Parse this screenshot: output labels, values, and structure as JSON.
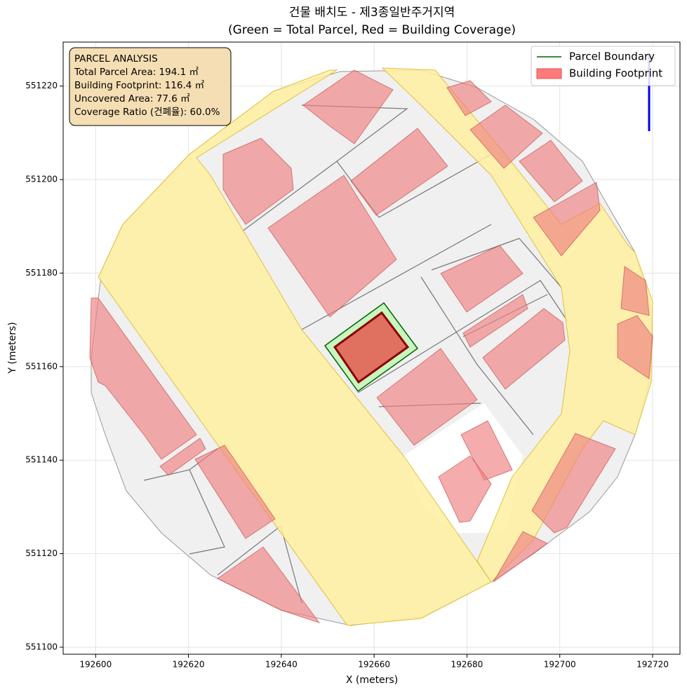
{
  "chart_data": {
    "type": "map",
    "title": "건물 배치도 - 제3종일반주거지역",
    "subtitle": "(Green = Total Parcel, Red = Building Coverage)",
    "xlabel": "X (meters)",
    "ylabel": "Y (meters)",
    "xlim": [
      192593.0,
      192725.9
    ],
    "ylim": [
      551098.5,
      551229.4
    ],
    "xticks": [
      192600,
      192620,
      192640,
      192660,
      192680,
      192700,
      192720
    ],
    "yticks": [
      551100,
      551120,
      551140,
      551160,
      551180,
      551200,
      551220
    ],
    "grid": true,
    "legend": {
      "loc": "upper right",
      "entries": [
        {
          "name": "Parcel Boundary",
          "color": "#006400",
          "kind": "line"
        },
        {
          "name": "Building Footprint",
          "color": "#ff7b7b",
          "kind": "patch"
        }
      ]
    },
    "annotation": [
      "PARCEL ANALYSIS",
      "Total Parcel Area: 194.1 ㎡",
      "Building Footprint: 116.4 ㎡",
      "Uncovered Area: 77.6 ㎡",
      "Coverage Ratio (건폐율): 60.0%"
    ]
  }
}
